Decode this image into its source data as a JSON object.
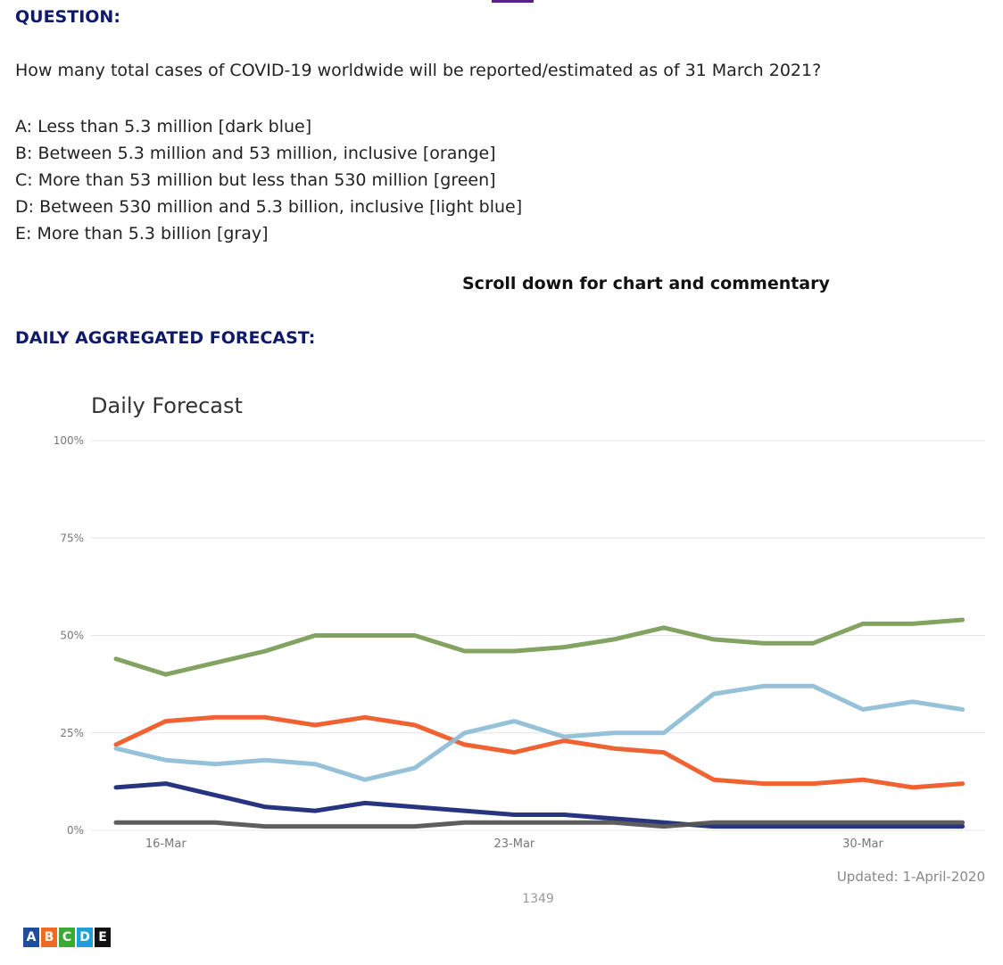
{
  "header": {
    "question_heading": "QUESTION:",
    "question": "How many total cases of COVID-19 worldwide will be reported/estimated as of 31 March 2021?",
    "answers": [
      "A: Less than 5.3 million [dark blue]",
      "B: Between 5.3 million and 53 million, inclusive [orange]",
      "C: More than 53 million but less than 530 million [green]",
      "D: Between 530 million and 5.3 billion, inclusive [light blue]",
      "E: More than 5.3 billion [gray]"
    ],
    "scroll_note": "Scroll down for chart and commentary",
    "forecast_heading": "DAILY AGGREGATED FORECAST:"
  },
  "footer": {
    "legend_letters": [
      "A",
      "B",
      "C",
      "D",
      "E"
    ],
    "legend_colors": [
      "#1f4e9c",
      "#f26a21",
      "#3aaa35",
      "#1ea0d6",
      "#111111"
    ]
  },
  "chart_data": {
    "type": "line",
    "title": "Daily Forecast",
    "updated": "Updated: 1-April-2020",
    "footnote": "1349",
    "x": [
      "15-Mar",
      "16-Mar",
      "17-Mar",
      "18-Mar",
      "19-Mar",
      "20-Mar",
      "21-Mar",
      "22-Mar",
      "23-Mar",
      "24-Mar",
      "25-Mar",
      "26-Mar",
      "27-Mar",
      "28-Mar",
      "29-Mar",
      "30-Mar",
      "31-Mar",
      "1-Apr"
    ],
    "x_tick_labels": [
      "16-Mar",
      "23-Mar",
      "30-Mar"
    ],
    "y_ticks": [
      "0%",
      "25%",
      "50%",
      "75%",
      "100%"
    ],
    "ylim": [
      0,
      100
    ],
    "grid": true,
    "series": [
      {
        "color": "#1b2a7a",
        "values": [
          11,
          12,
          9,
          6,
          5,
          7,
          6,
          5,
          4,
          4,
          3,
          2,
          1,
          1,
          1,
          1,
          1,
          1
        ]
      },
      {
        "color": "#f05a28",
        "values": [
          22,
          28,
          29,
          29,
          27,
          29,
          27,
          22,
          20,
          23,
          21,
          20,
          13,
          12,
          12,
          13,
          11,
          12
        ]
      },
      {
        "color": "#7c9e5a",
        "values": [
          44,
          40,
          43,
          46,
          50,
          50,
          50,
          46,
          46,
          47,
          49,
          52,
          49,
          48,
          48,
          53,
          53,
          54
        ]
      },
      {
        "color": "#8fbfd6",
        "values": [
          21,
          18,
          17,
          18,
          17,
          13,
          16,
          25,
          28,
          24,
          25,
          25,
          35,
          37,
          37,
          31,
          33,
          31
        ]
      },
      {
        "color": "#555555",
        "values": [
          2,
          2,
          2,
          1,
          1,
          1,
          1,
          2,
          2,
          2,
          2,
          1,
          2,
          2,
          2,
          2,
          2,
          2
        ]
      }
    ]
  }
}
